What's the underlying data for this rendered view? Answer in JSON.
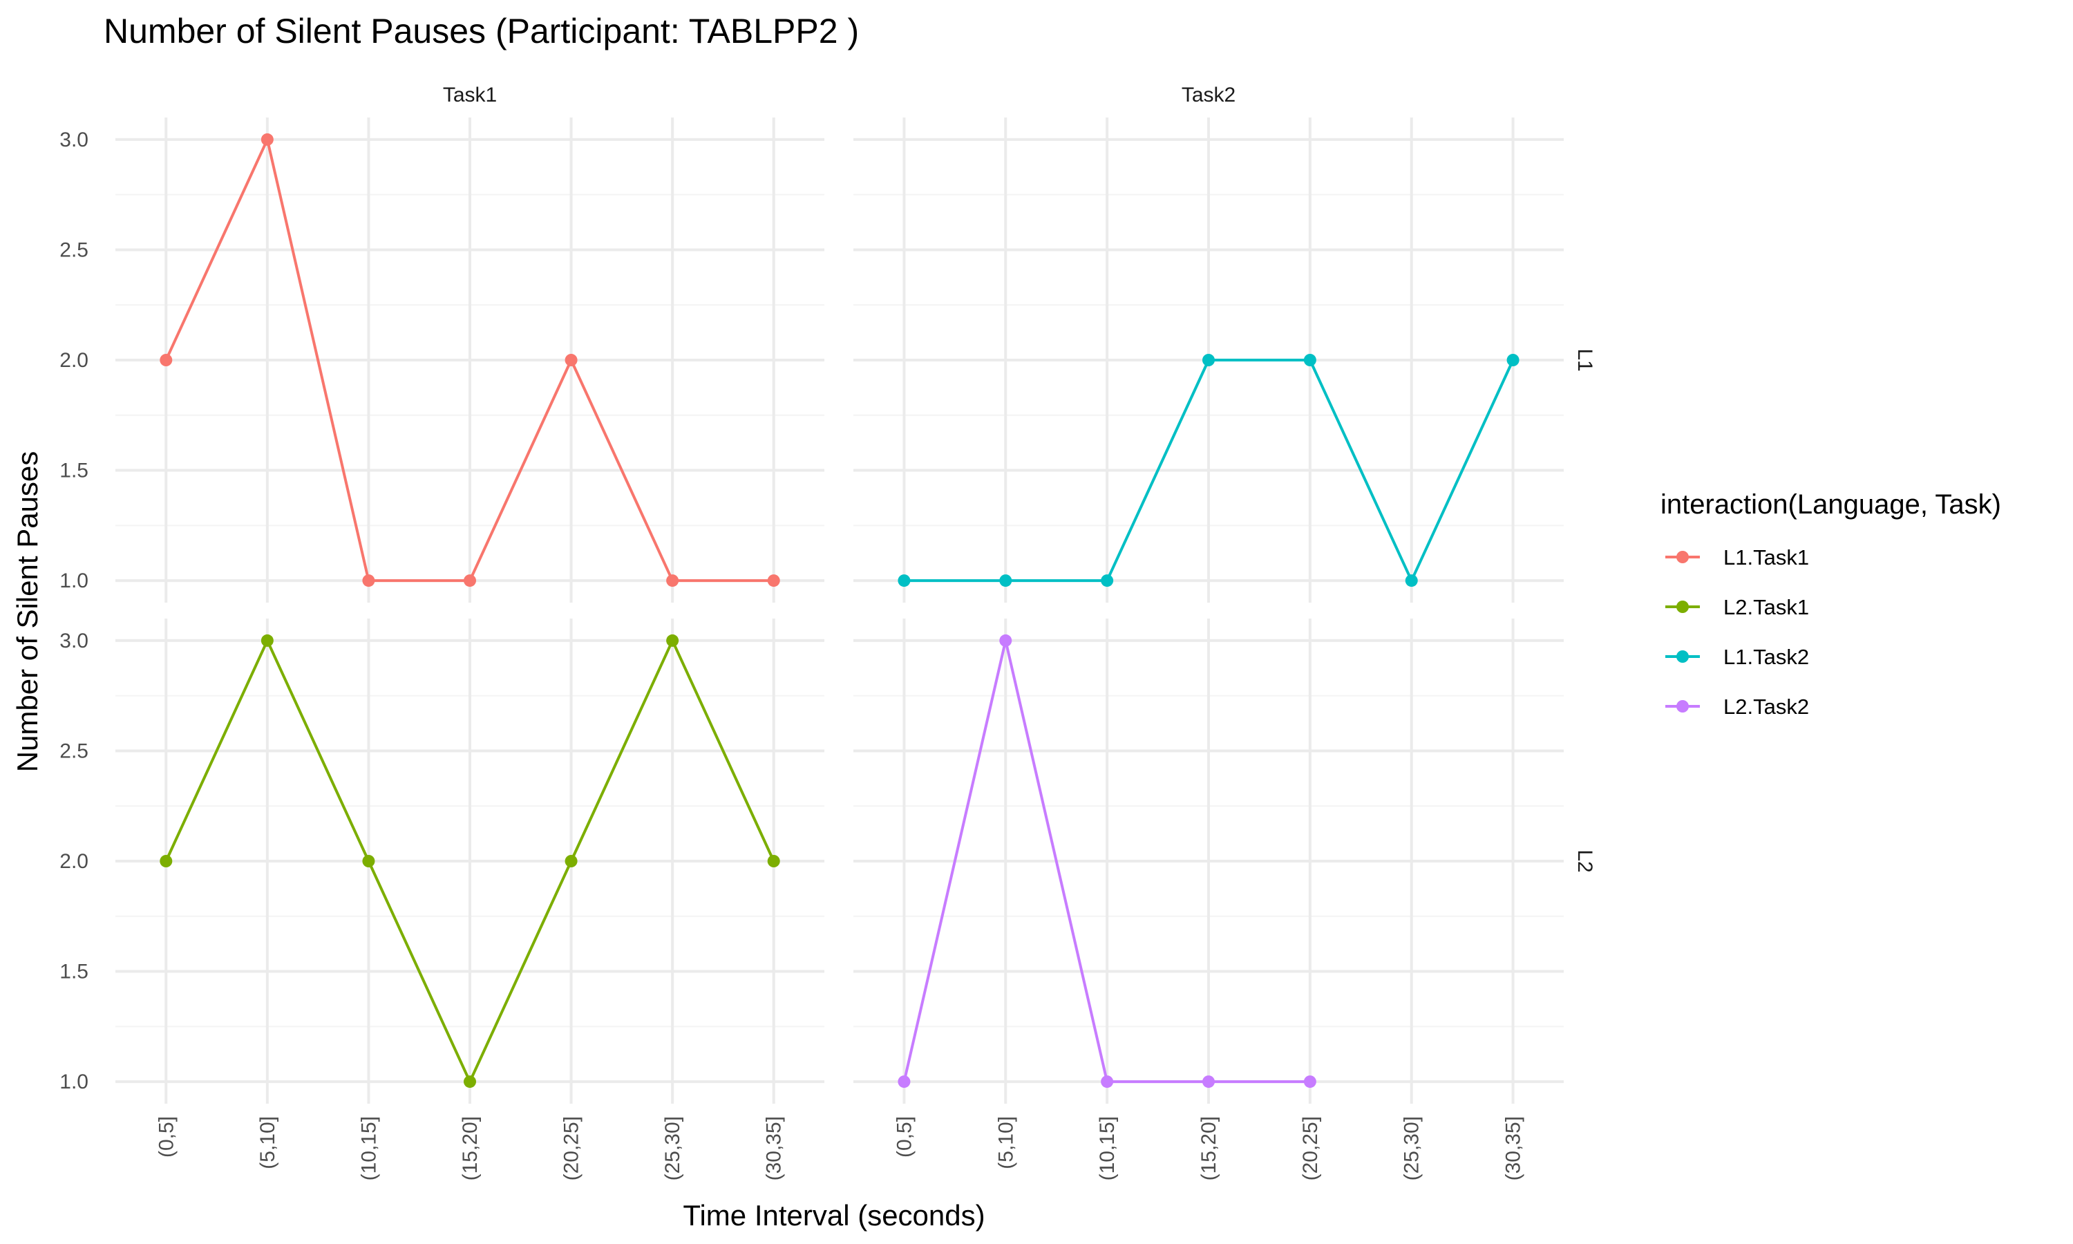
{
  "chart_data": {
    "type": "line",
    "title": "Number of Silent Pauses (Participant: TABLPP2 )",
    "xlabel": "Time Interval (seconds)",
    "ylabel": "Number of Silent Pauses",
    "categories": [
      "(0,5]",
      "(5,10]",
      "(10,15]",
      "(15,20]",
      "(20,25]",
      "(25,30]",
      "(30,35]"
    ],
    "ylim": [
      0.9,
      3.1
    ],
    "yticks": [
      "1.0",
      "1.5",
      "2.0",
      "2.5",
      "3.0"
    ],
    "grid": true,
    "facet_columns": [
      "Task1",
      "Task2"
    ],
    "facet_rows": [
      "L1",
      "L2"
    ],
    "legend": {
      "title": "interaction(Language, Task)",
      "position": "right",
      "entries": [
        "L1.Task1",
        "L2.Task1",
        "L1.Task2",
        "L2.Task2"
      ]
    },
    "series": [
      {
        "name": "L1.Task1",
        "color": "#F8766D",
        "facet_row": 0,
        "facet_col": 0,
        "values": [
          2,
          3,
          1,
          1,
          2,
          1,
          1
        ]
      },
      {
        "name": "L2.Task1",
        "color": "#7CAE00",
        "facet_row": 1,
        "facet_col": 0,
        "values": [
          2,
          3,
          2,
          1,
          2,
          3,
          2
        ]
      },
      {
        "name": "L1.Task2",
        "color": "#00BFC4",
        "facet_row": 0,
        "facet_col": 1,
        "values": [
          1,
          1,
          1,
          2,
          2,
          1,
          2
        ]
      },
      {
        "name": "L2.Task2",
        "color": "#C77CFF",
        "facet_row": 1,
        "facet_col": 1,
        "values": [
          1,
          3,
          1,
          1,
          1,
          null,
          null
        ]
      }
    ]
  }
}
